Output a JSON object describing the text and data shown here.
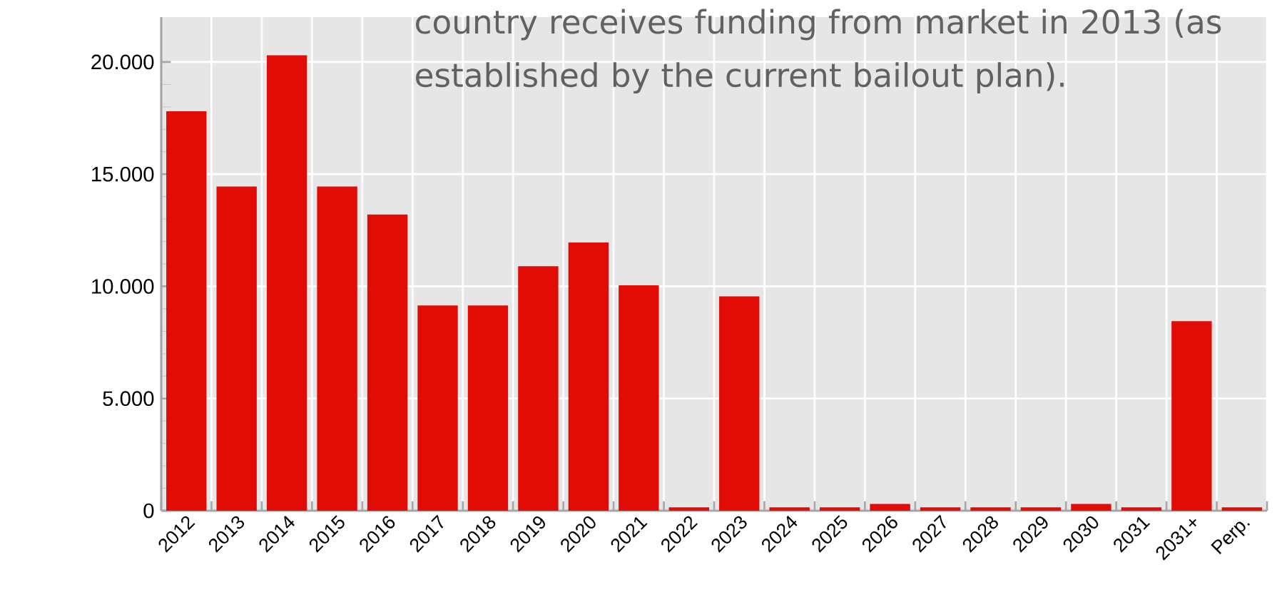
{
  "chart_data": {
    "type": "bar",
    "categories": [
      "2012",
      "2013",
      "2014",
      "2015",
      "2016",
      "2017",
      "2018",
      "2019",
      "2020",
      "2021",
      "2022",
      "2023",
      "2024",
      "2025",
      "2026",
      "2027",
      "2028",
      "2029",
      "2030",
      "2031",
      "2031+",
      "Perp."
    ],
    "values": [
      17800,
      14450,
      20300,
      14450,
      13200,
      9150,
      9150,
      10900,
      11950,
      10050,
      150,
      9550,
      150,
      150,
      300,
      150,
      150,
      150,
      300,
      150,
      8450,
      150
    ],
    "color": "#e00c05",
    "ylim": [
      0,
      22000
    ],
    "yticks": [
      0,
      {
        "value": 5000,
        "label": "5.000"
      },
      {
        "value": 10000,
        "label": "10.000"
      },
      {
        "value": 15000,
        "label": "15.000"
      },
      {
        "value": 20000,
        "label": "20.000"
      }
    ],
    "grid": true,
    "annotations": [
      "country receives funding from market in 2013 (as established by the current bailout plan)."
    ]
  }
}
